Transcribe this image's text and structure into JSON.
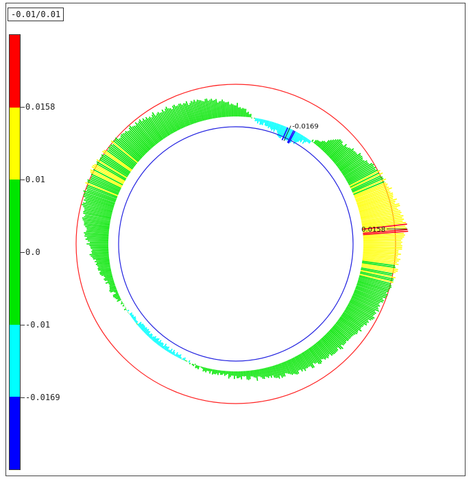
{
  "range_label": "-0.01/0.01",
  "colors": {
    "red": "#ff0000",
    "yellow": "#ffff00",
    "green": "#00e600",
    "cyan": "#00ffff",
    "blue": "#0000ff",
    "outer_circle": "#ff2020",
    "inner_circle": "#2020e0"
  },
  "colorbar": {
    "segments": [
      "#ff0000",
      "#ffff00",
      "#00e600",
      "#00e600",
      "#00ffff",
      "#0000ff"
    ],
    "ticks": [
      {
        "label": "0.0158",
        "value": 0.0158
      },
      {
        "label": "0.01",
        "value": 0.01
      },
      {
        "label": "0.0",
        "value": 0.0
      },
      {
        "label": "-0.01",
        "value": -0.01
      },
      {
        "label": "-0.0169",
        "value": -0.0169
      }
    ]
  },
  "chart_data": {
    "type": "polar-deviation",
    "max": {
      "label": "0.0158",
      "value": 0.0158,
      "angle_deg": 5
    },
    "min": {
      "label": "-0.0169",
      "value": -0.0169,
      "angle_deg": 65
    },
    "profile": [
      {
        "angle_deg": 0,
        "deviation": 0.012
      },
      {
        "angle_deg": 5,
        "deviation": 0.0158
      },
      {
        "angle_deg": 10,
        "deviation": 0.014
      },
      {
        "angle_deg": 15,
        "deviation": 0.012
      },
      {
        "angle_deg": 20,
        "deviation": 0.011
      },
      {
        "angle_deg": 25,
        "deviation": 0.01
      },
      {
        "angle_deg": 30,
        "deviation": 0.008
      },
      {
        "angle_deg": 35,
        "deviation": 0.005
      },
      {
        "angle_deg": 40,
        "deviation": 0.003
      },
      {
        "angle_deg": 45,
        "deviation": 0.001
      },
      {
        "angle_deg": 50,
        "deviation": -0.005
      },
      {
        "angle_deg": 55,
        "deviation": -0.011
      },
      {
        "angle_deg": 60,
        "deviation": -0.015
      },
      {
        "angle_deg": 65,
        "deviation": -0.0169
      },
      {
        "angle_deg": 70,
        "deviation": -0.014
      },
      {
        "angle_deg": 75,
        "deviation": -0.012
      },
      {
        "angle_deg": 80,
        "deviation": -0.011
      },
      {
        "angle_deg": 90,
        "deviation": -0.002
      },
      {
        "angle_deg": 100,
        "deviation": 0.001
      },
      {
        "angle_deg": 110,
        "deviation": 0.003
      },
      {
        "angle_deg": 120,
        "deviation": 0.005
      },
      {
        "angle_deg": 130,
        "deviation": 0.007
      },
      {
        "angle_deg": 140,
        "deviation": 0.009
      },
      {
        "angle_deg": 150,
        "deviation": 0.01
      },
      {
        "angle_deg": 160,
        "deviation": 0.009
      },
      {
        "angle_deg": 170,
        "deviation": 0.006
      },
      {
        "angle_deg": 180,
        "deviation": 0.002
      },
      {
        "angle_deg": 190,
        "deviation": -0.002
      },
      {
        "angle_deg": 200,
        "deviation": -0.006
      },
      {
        "angle_deg": 210,
        "deviation": -0.009
      },
      {
        "angle_deg": 220,
        "deviation": -0.011
      },
      {
        "angle_deg": 230,
        "deviation": -0.012
      },
      {
        "angle_deg": 240,
        "deviation": -0.011
      },
      {
        "angle_deg": 250,
        "deviation": -0.009
      },
      {
        "angle_deg": 260,
        "deviation": -0.007
      },
      {
        "angle_deg": 270,
        "deviation": -0.006
      },
      {
        "angle_deg": 280,
        "deviation": -0.004
      },
      {
        "angle_deg": 290,
        "deviation": -0.002
      },
      {
        "angle_deg": 300,
        "deviation": 0.0
      },
      {
        "angle_deg": 310,
        "deviation": 0.001
      },
      {
        "angle_deg": 320,
        "deviation": 0.003
      },
      {
        "angle_deg": 330,
        "deviation": 0.006
      },
      {
        "angle_deg": 340,
        "deviation": 0.008
      },
      {
        "angle_deg": 350,
        "deviation": 0.01
      },
      {
        "angle_deg": 360,
        "deviation": 0.012
      }
    ],
    "scale_range": [
      -0.02,
      0.02
    ]
  }
}
